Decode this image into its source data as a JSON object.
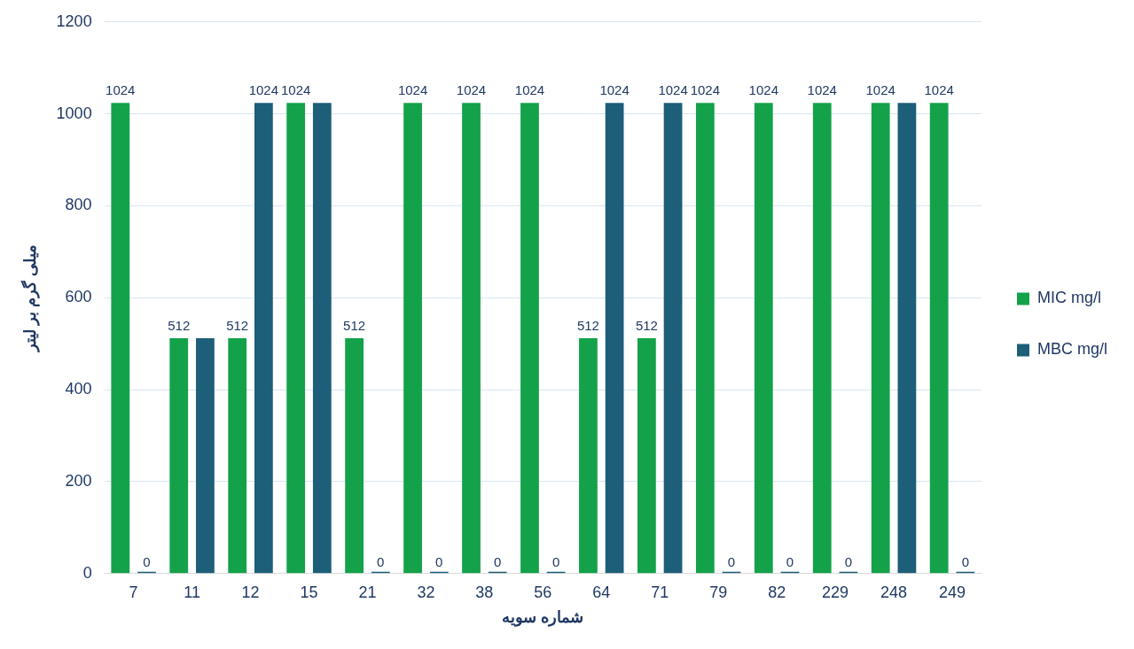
{
  "chart_data": {
    "type": "bar",
    "xlabel": "شماره سویه",
    "ylabel": "میلی گرم بر لیتر",
    "categories": [
      "7",
      "11",
      "12",
      "15",
      "21",
      "32",
      "38",
      "56",
      "64",
      "71",
      "79",
      "82",
      "229",
      "248",
      "249"
    ],
    "series": [
      {
        "name": "MIC mg/l",
        "color": "#13a24a",
        "values": [
          1024,
          512,
          512,
          1024,
          512,
          1024,
          1024,
          1024,
          512,
          512,
          1024,
          1024,
          1024,
          1024,
          1024
        ],
        "value_labels": [
          "1024",
          "512",
          "512",
          "1024",
          "512",
          "1024",
          "1024",
          "1024",
          "512",
          "512",
          "1024",
          "1024",
          "1024",
          "1024",
          "1024"
        ]
      },
      {
        "name": "MBC mg/l",
        "color": "#1d5e78",
        "values": [
          0,
          512,
          1024,
          1024,
          0,
          0,
          0,
          0,
          1024,
          1024,
          0,
          0,
          0,
          1024,
          0
        ],
        "value_labels": [
          "0",
          null,
          "1024",
          null,
          "0",
          "0",
          "0",
          "0",
          "1024",
          "1024",
          "0",
          "0",
          "0",
          null,
          "0"
        ]
      }
    ],
    "ylim": [
      0,
      1200
    ],
    "yticks": [
      0,
      200,
      400,
      600,
      800,
      1000,
      1200
    ],
    "grid": "y",
    "legend": "right"
  }
}
